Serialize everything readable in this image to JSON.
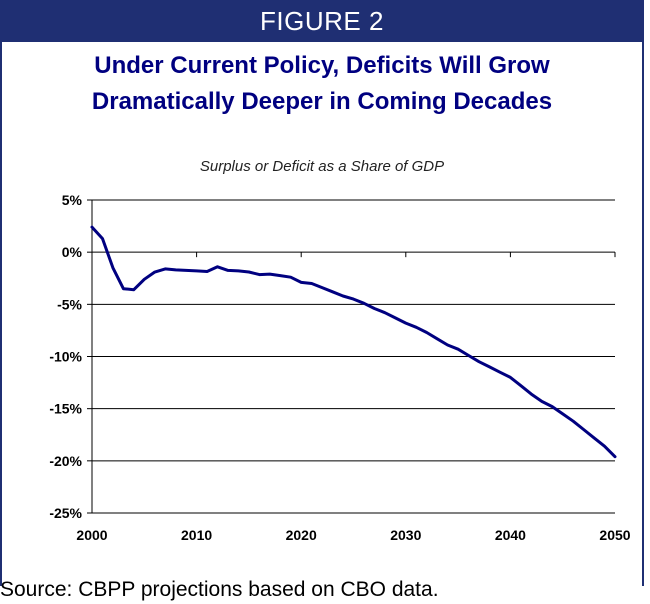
{
  "banner": "FIGURE 2",
  "title_lines": [
    "Under Current Policy, Deficits Will Grow",
    "Dramatically Deeper in Coming Decades"
  ],
  "source": "Source: CBPP projections based on CBO data.",
  "colors": {
    "banner": "#1f2f73",
    "title": "#000080",
    "line": "#000080"
  },
  "chart_data": {
    "type": "line",
    "title": "Under Current Policy, Deficits Will Grow Dramatically Deeper in Coming Decades",
    "subtitle": "Surplus or Deficit as a Share of GDP",
    "xlabel": "",
    "ylabel": "",
    "xlim": [
      2000,
      2050
    ],
    "ylim": [
      -25,
      5
    ],
    "x_ticks": [
      2000,
      2010,
      2020,
      2030,
      2040,
      2050
    ],
    "x_tick_labels": [
      "2000",
      "2010",
      "2020",
      "2030",
      "2040",
      "2050"
    ],
    "y_ticks": [
      5,
      0,
      -5,
      -10,
      -15,
      -20,
      -25
    ],
    "y_tick_labels": [
      "5%",
      "0%",
      "-5%",
      "-10%",
      "-15%",
      "-20%",
      "-25%"
    ],
    "grid": "horizontal",
    "legend": "none",
    "series": [
      {
        "x": [
          2000,
          2001,
          2002,
          2003,
          2004,
          2005,
          2006,
          2007,
          2008,
          2009,
          2010,
          2011,
          2012,
          2013,
          2014,
          2015,
          2016,
          2017,
          2018,
          2019,
          2020,
          2021,
          2022,
          2023,
          2024,
          2025,
          2026,
          2027,
          2028,
          2029,
          2030,
          2031,
          2032,
          2033,
          2034,
          2035,
          2036,
          2037,
          2038,
          2039,
          2040,
          2041,
          2042,
          2043,
          2044,
          2045,
          2046,
          2047,
          2048,
          2049,
          2050
        ],
        "values": [
          2.4,
          1.3,
          -1.5,
          -3.5,
          -3.6,
          -2.6,
          -1.9,
          -1.6,
          -1.7,
          -1.75,
          -1.8,
          -1.85,
          -1.4,
          -1.75,
          -1.8,
          -1.9,
          -2.15,
          -2.1,
          -2.25,
          -2.4,
          -2.9,
          -3.0,
          -3.4,
          -3.8,
          -4.2,
          -4.5,
          -4.9,
          -5.4,
          -5.8,
          -6.3,
          -6.8,
          -7.2,
          -7.7,
          -8.3,
          -8.9,
          -9.3,
          -9.9,
          -10.5,
          -11.0,
          -11.5,
          -12.0,
          -12.8,
          -13.6,
          -14.3,
          -14.8,
          -15.5,
          -16.2,
          -17.0,
          -17.8,
          -18.6,
          -19.6
        ]
      }
    ]
  }
}
